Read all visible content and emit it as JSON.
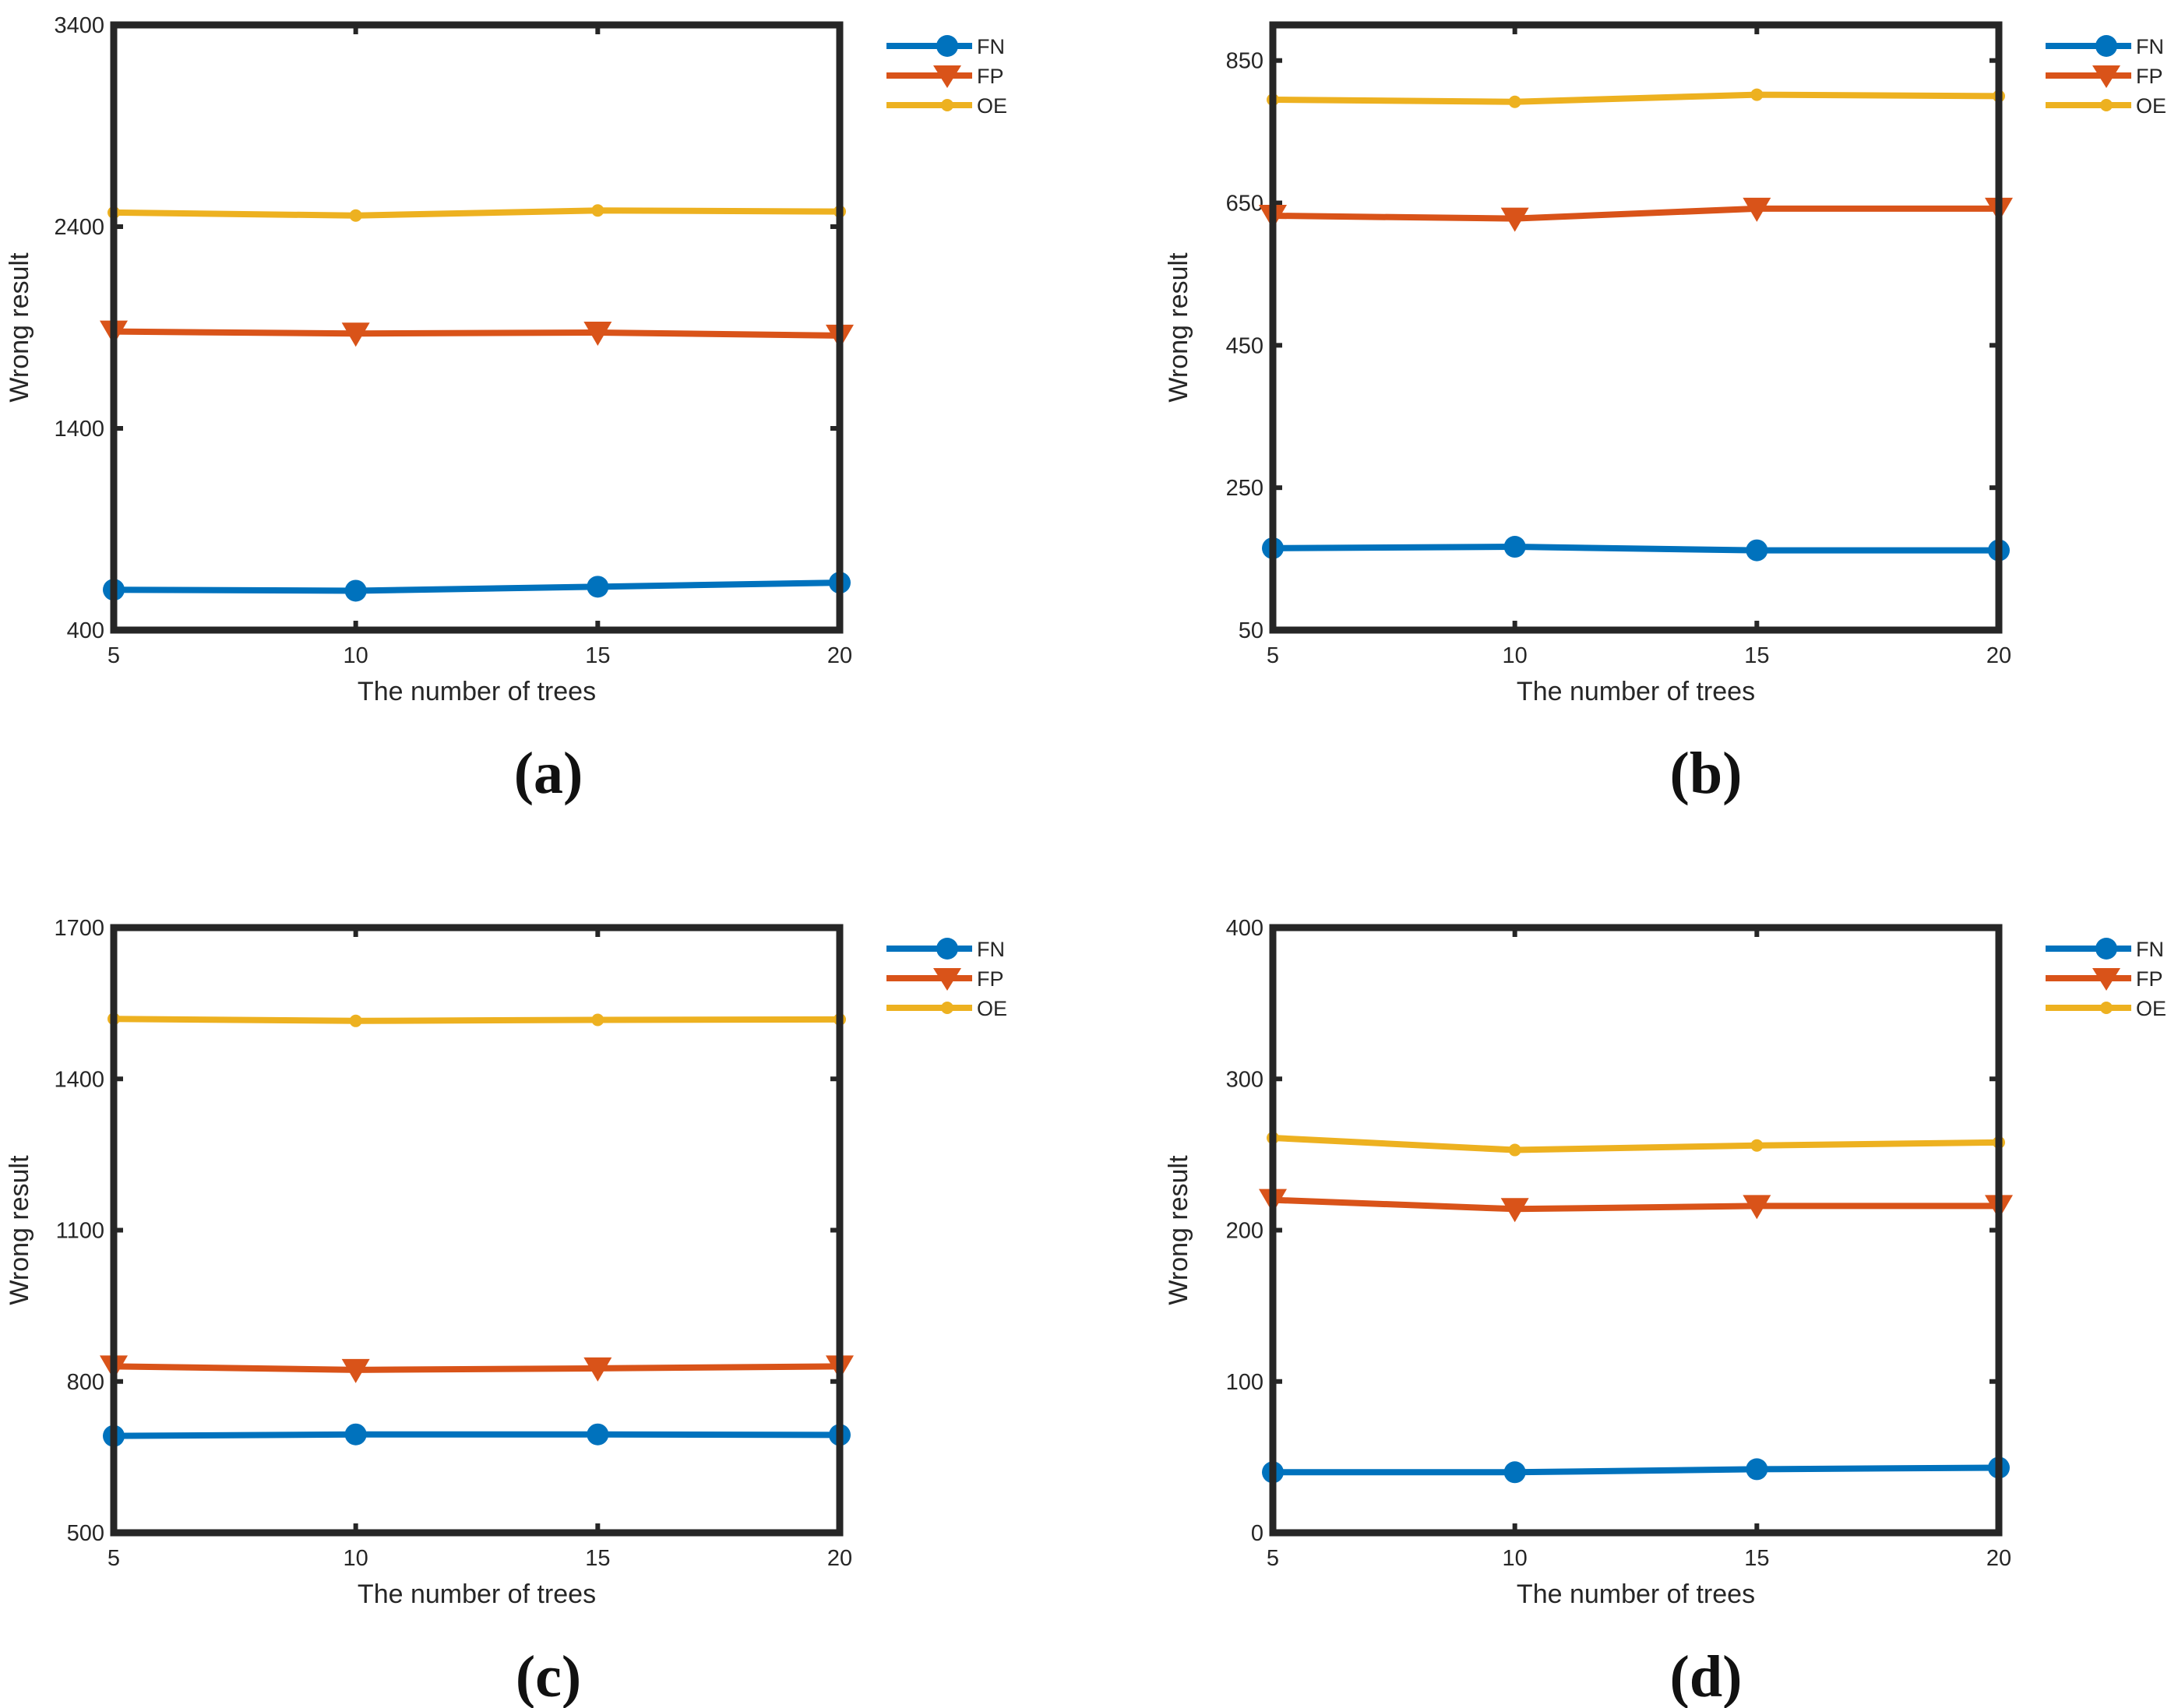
{
  "chart_data": [
    {
      "type": "line",
      "caption": "(a)",
      "xlabel": "The number of trees",
      "ylabel": "Wrong result",
      "x": [
        5,
        10,
        15,
        20
      ],
      "xlim": [
        5,
        20
      ],
      "ylim": [
        400,
        3400
      ],
      "xticks": [
        "5",
        "10",
        "15",
        "20"
      ],
      "yticks": [
        "400",
        "1400",
        "2400",
        "3400"
      ],
      "legend_position": "outside-top-right",
      "series": [
        {
          "name": "FN",
          "marker": "circle",
          "color": "#0072BD",
          "values": [
            600,
            595,
            615,
            635
          ]
        },
        {
          "name": "FP",
          "marker": "triangle-down",
          "color": "#D95319",
          "values": [
            1880,
            1870,
            1875,
            1860
          ]
        },
        {
          "name": "OE",
          "marker": "dot",
          "color": "#EDB120",
          "values": [
            2470,
            2455,
            2480,
            2475
          ]
        }
      ]
    },
    {
      "type": "line",
      "caption": "(b)",
      "xlabel": "The number of trees",
      "ylabel": "Wrong result",
      "x": [
        5,
        10,
        15,
        20
      ],
      "xlim": [
        5,
        20
      ],
      "ylim": [
        50,
        900
      ],
      "xticks": [
        "5",
        "10",
        "15",
        "20"
      ],
      "yticks": [
        "50",
        "250",
        "450",
        "650",
        "850"
      ],
      "legend_position": "outside-top-right",
      "series": [
        {
          "name": "FN",
          "marker": "circle",
          "color": "#0072BD",
          "values": [
            165,
            167,
            162,
            162
          ]
        },
        {
          "name": "FP",
          "marker": "triangle-down",
          "color": "#D95319",
          "values": [
            632,
            628,
            642,
            642
          ]
        },
        {
          "name": "OE",
          "marker": "dot",
          "color": "#EDB120",
          "values": [
            795,
            792,
            802,
            800
          ]
        }
      ]
    },
    {
      "type": "line",
      "caption": "(c)",
      "xlabel": "The number of trees",
      "ylabel": "Wrong result",
      "x": [
        5,
        10,
        15,
        20
      ],
      "xlim": [
        5,
        20
      ],
      "ylim": [
        500,
        1700
      ],
      "xticks": [
        "5",
        "10",
        "15",
        "20"
      ],
      "yticks": [
        "500",
        "800",
        "1100",
        "1400",
        "1700"
      ],
      "legend_position": "outside-top-right",
      "series": [
        {
          "name": "FN",
          "marker": "circle",
          "color": "#0072BD",
          "values": [
            692,
            695,
            695,
            694
          ]
        },
        {
          "name": "FP",
          "marker": "triangle-down",
          "color": "#D95319",
          "values": [
            830,
            823,
            826,
            830
          ]
        },
        {
          "name": "OE",
          "marker": "dot",
          "color": "#EDB120",
          "values": [
            1519,
            1515,
            1517,
            1518
          ]
        }
      ]
    },
    {
      "type": "line",
      "caption": "(d)",
      "xlabel": "The number of trees",
      "ylabel": "Wrong result",
      "x": [
        5,
        10,
        15,
        20
      ],
      "xlim": [
        5,
        20
      ],
      "ylim": [
        0,
        400
      ],
      "xticks": [
        "5",
        "10",
        "15",
        "20"
      ],
      "yticks": [
        "0",
        "100",
        "200",
        "300",
        "400"
      ],
      "legend_position": "outside-top-right",
      "series": [
        {
          "name": "FN",
          "marker": "circle",
          "color": "#0072BD",
          "values": [
            40,
            40,
            42,
            43
          ]
        },
        {
          "name": "FP",
          "marker": "triangle-down",
          "color": "#D95319",
          "values": [
            220,
            214,
            216,
            216
          ]
        },
        {
          "name": "OE",
          "marker": "dot",
          "color": "#EDB120",
          "values": [
            261,
            253,
            256,
            258
          ]
        }
      ]
    }
  ]
}
